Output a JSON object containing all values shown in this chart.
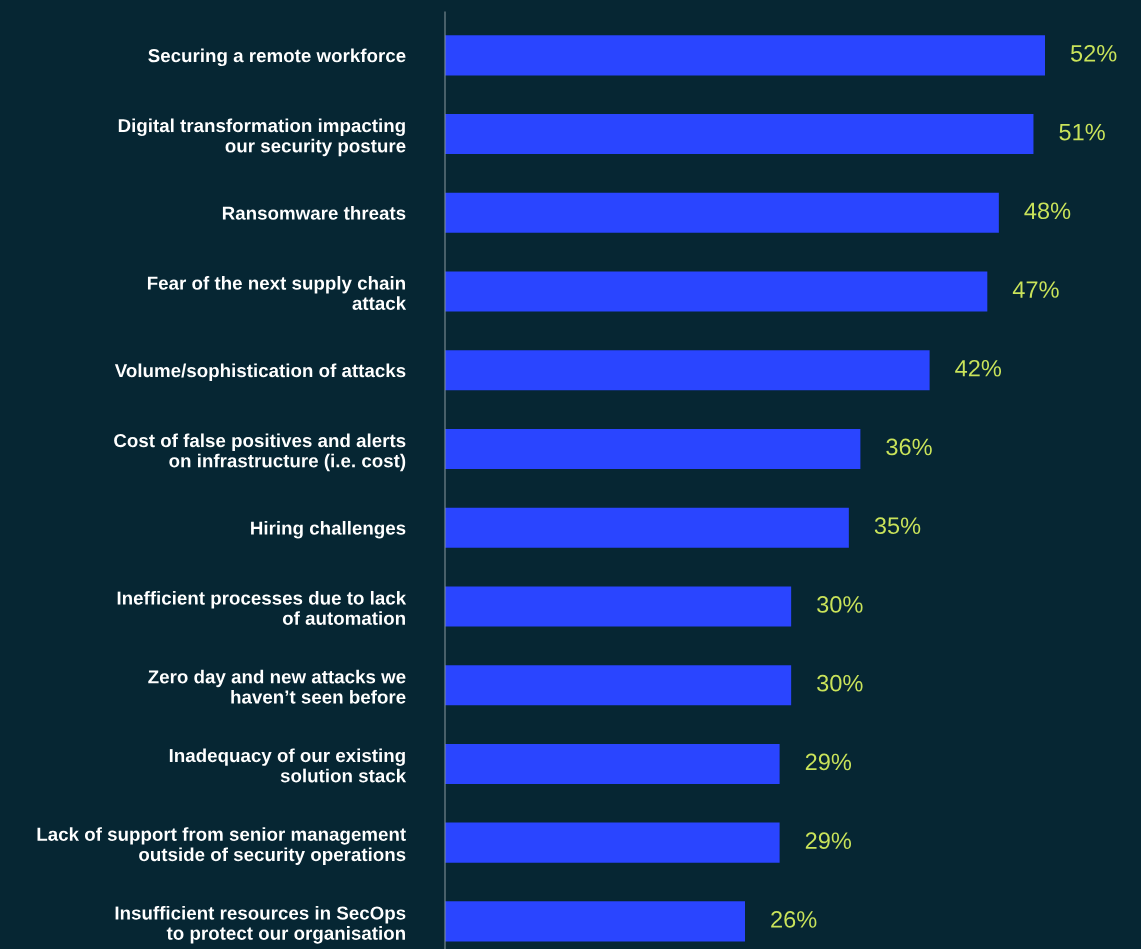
{
  "chart_data": {
    "type": "bar",
    "orientation": "horizontal",
    "categories": [
      "Securing a remote workforce",
      "Digital transformation impacting\nour security posture",
      "Ransomware threats",
      "Fear of the next supply chain\nattack",
      "Volume/sophistication of attacks",
      "Cost of false positives and alerts\non infrastructure (i.e. cost)",
      "Hiring challenges",
      "Inefficient processes due to lack\nof automation",
      "Zero day and new attacks we\nhaven’t seen before",
      "Inadequacy of our existing\nsolution stack",
      "Lack of support from senior management\noutside of security operations",
      "Insufficient resources in SecOps\nto protect our organisation"
    ],
    "values": [
      52,
      51,
      48,
      47,
      42,
      36,
      35,
      30,
      30,
      29,
      29,
      26
    ],
    "value_labels": [
      "52%",
      "51%",
      "48%",
      "47%",
      "42%",
      "36%",
      "35%",
      "30%",
      "30%",
      "29%",
      "29%",
      "26%"
    ],
    "color": "#2a45ff",
    "grid": false,
    "legend": false
  }
}
